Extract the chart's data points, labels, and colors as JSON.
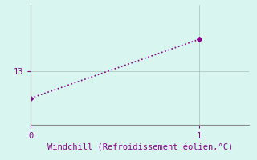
{
  "x": [
    0,
    1
  ],
  "y": [
    12.0,
    14.2
  ],
  "line_color": "#8B008B",
  "marker": "D",
  "markersize": 3,
  "background_color": "#d8f5f0",
  "xlabel": "Windchill (Refroidissement éolien,°C)",
  "xlabel_color": "#8B008B",
  "xlabel_fontsize": 7.5,
  "tick_color": "#8B008B",
  "tick_fontsize": 7.5,
  "grid_color": "#aabfbb",
  "xlim": [
    0,
    1.3
  ],
  "ylim": [
    11.0,
    15.5
  ],
  "yticks": [
    13
  ],
  "xticks": [
    0,
    1
  ],
  "spine_color": "#888888",
  "linestyle": ":",
  "linewidth": 1.2
}
